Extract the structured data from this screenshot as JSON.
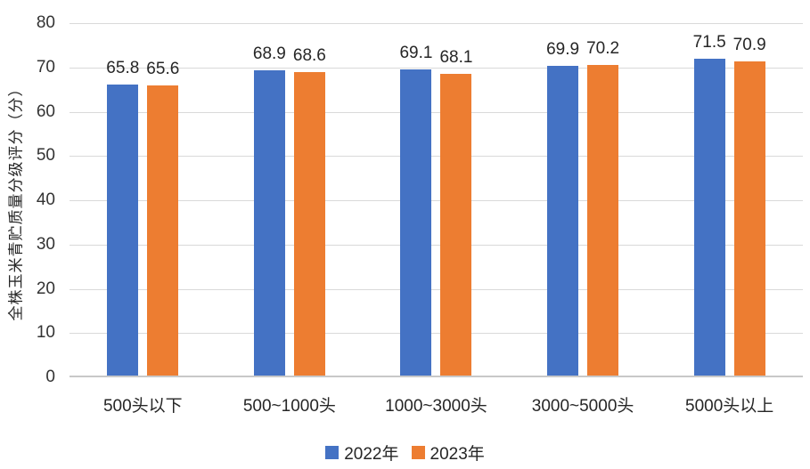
{
  "chart_data": {
    "type": "bar",
    "title": "",
    "xlabel": "",
    "ylabel": "全株玉米青贮质量分级评分（分）",
    "categories": [
      "500头以下",
      "500~1000头",
      "1000~3000头",
      "3000~5000头",
      "5000头以上"
    ],
    "series": [
      {
        "name": "2022年",
        "color": "#4472C4",
        "values": [
          65.8,
          68.9,
          69.1,
          69.9,
          71.5
        ]
      },
      {
        "name": "2023年",
        "color": "#ED7D31",
        "values": [
          65.6,
          68.6,
          68.1,
          70.2,
          70.9
        ]
      }
    ],
    "ylim": [
      0,
      80
    ],
    "yticks": [
      0,
      10,
      20,
      30,
      40,
      50,
      60,
      70,
      80
    ],
    "grid": true,
    "legend_position": "bottom",
    "colors": {
      "gridline": "#d9d9d9",
      "axis_line": "#c8c8c8",
      "text": "#262626"
    }
  }
}
